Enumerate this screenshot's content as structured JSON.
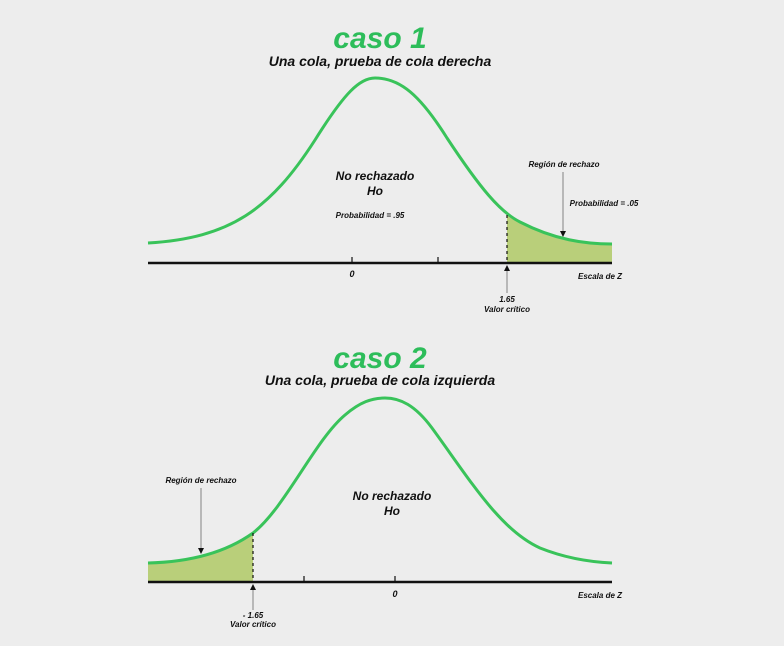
{
  "cases": [
    {
      "heading": "caso 1",
      "subtitle": "Una cola, prueba de cola derecha",
      "center_label_1": "No rechazado",
      "center_label_2": "Ho",
      "prob_label": "Probabilidad = .95",
      "region_label": "Región de rechazo",
      "tail_prob_label": "Probabilidad = .05",
      "zero_label": "0",
      "critical_value": "1.65",
      "critical_label": "Valor crítico",
      "scale_label": "Escala de Z"
    },
    {
      "heading": "caso 2",
      "subtitle": "Una cola, prueba de cola izquierda",
      "center_label_1": "No rechazado",
      "center_label_2": "Ho",
      "region_label": "Región de rechazo",
      "zero_label": "0",
      "critical_value": "- 1.65",
      "critical_label": "Valor crítico",
      "scale_label": "Escala de Z"
    }
  ],
  "colors": {
    "curve": "#39c35a",
    "heading": "#2dbd5a",
    "shade": "#b9cf7a",
    "axis": "#111111"
  }
}
